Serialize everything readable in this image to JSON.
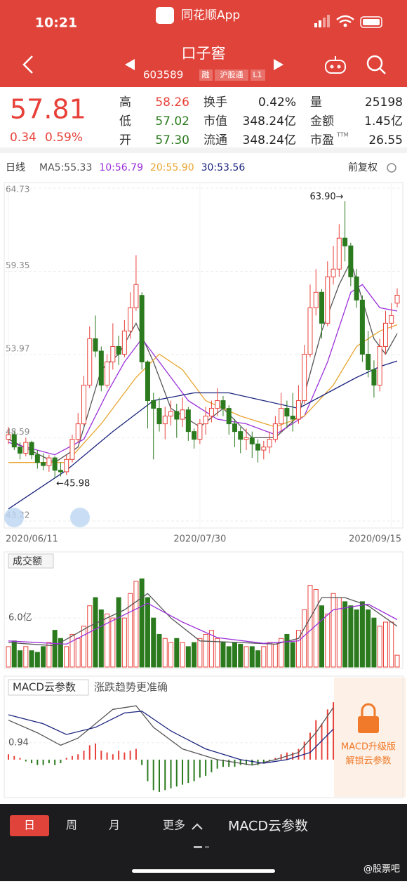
{
  "status": {
    "time": "10:21",
    "app": "同花顺App"
  },
  "header": {
    "title": "口子窖",
    "code": "603589",
    "tags": [
      "融",
      "沪股通",
      "L1"
    ]
  },
  "quote": {
    "price": "57.81",
    "change": "0.34",
    "change_pct": "0.59%",
    "fields": [
      {
        "label": "高",
        "value": "58.26"
      },
      {
        "label": "低",
        "value": "57.02"
      },
      {
        "label": "开",
        "value": "57.30"
      },
      {
        "label": "换手",
        "value": "0.42%"
      },
      {
        "label": "市值",
        "value": "348.24亿"
      },
      {
        "label": "流通",
        "value": "348.24亿"
      },
      {
        "label": "量",
        "value": "25198"
      },
      {
        "label": "金额",
        "value": "1.45亿"
      },
      {
        "label": "市盈",
        "sup": "TTM",
        "value": "26.55"
      }
    ]
  },
  "chart_data": [
    {
      "type": "candlestick",
      "period": "日线",
      "adjust": "前复权",
      "legend": [
        {
          "text": "MA5:55.33",
          "color": "#555555"
        },
        {
          "text": "10:56.79",
          "color": "#9b30d9"
        },
        {
          "text": "20:55.90",
          "color": "#e8a530"
        },
        {
          "text": "30:53.56",
          "color": "#1a237e"
        }
      ],
      "ylim": [
        43.22,
        64.73
      ],
      "yticks": [
        64.73,
        59.35,
        53.97,
        48.59,
        43.22
      ],
      "xticks": [
        {
          "value": 0,
          "label": "2020/06/11"
        },
        {
          "value": 33,
          "label": "2020/07/30"
        },
        {
          "value": 66,
          "label": "2020/09/15"
        }
      ],
      "annotations": [
        {
          "text": "63.90→",
          "x": 58,
          "y": 63.9,
          "anchor": "end"
        },
        {
          "text": "←45.98",
          "x": 8,
          "y": 45.98,
          "anchor": "start"
        }
      ],
      "up_color": "#e8413a",
      "down_color": "#2b7a1e",
      "candles": {
        "open": [
          48.5,
          48.8,
          48.0,
          47.6,
          48.3,
          47.5,
          47.0,
          46.8,
          47.3,
          46.5,
          46.4,
          47.2,
          48.5,
          49.5,
          52.0,
          55.0,
          54.2,
          52.0,
          53.5,
          54.5,
          54.0,
          55.5,
          57.0,
          57.8,
          53.5,
          51.0,
          50.5,
          49.5,
          50.0,
          50.3,
          49.8,
          50.4,
          49.0,
          48.5,
          49.5,
          50.0,
          50.5,
          51.0,
          50.5,
          49.5,
          49.0,
          48.5,
          48.6,
          48.2,
          47.8,
          48.0,
          48.5,
          49.5,
          50.5,
          50.0,
          49.8,
          51.0,
          54.0,
          57.0,
          58.0,
          56.0,
          59.0,
          59.5,
          61.5,
          61.0,
          59.0,
          57.5,
          54.0,
          53.0,
          52.0,
          54.5,
          56.0,
          57.3
        ],
        "close": [
          48.8,
          48.0,
          47.6,
          48.3,
          47.5,
          47.0,
          46.8,
          47.3,
          46.5,
          46.4,
          47.2,
          48.5,
          49.5,
          52.0,
          55.0,
          54.2,
          52.0,
          53.5,
          54.5,
          54.0,
          55.5,
          57.0,
          58.5,
          53.5,
          51.0,
          50.5,
          49.5,
          50.0,
          50.3,
          49.8,
          50.4,
          49.0,
          48.5,
          49.5,
          50.0,
          50.5,
          51.0,
          50.5,
          49.5,
          49.0,
          48.5,
          48.6,
          48.2,
          47.8,
          48.0,
          48.5,
          49.5,
          50.5,
          50.0,
          49.8,
          51.0,
          54.0,
          57.0,
          58.0,
          56.0,
          59.0,
          59.5,
          61.5,
          61.0,
          59.0,
          57.5,
          54.0,
          53.0,
          52.0,
          54.5,
          56.0,
          56.5,
          57.81
        ],
        "high": [
          49.3,
          49.0,
          48.3,
          48.6,
          48.4,
          47.8,
          47.6,
          47.5,
          47.4,
          47.0,
          47.5,
          48.8,
          50.2,
          52.6,
          55.8,
          56.5,
          54.5,
          54.0,
          56.0,
          55.2,
          56.2,
          58.0,
          60.4,
          58.0,
          53.6,
          51.5,
          51.2,
          50.6,
          51.0,
          50.8,
          51.2,
          50.6,
          49.2,
          49.8,
          50.6,
          51.0,
          51.8,
          51.3,
          50.7,
          49.8,
          49.3,
          49.2,
          49.0,
          48.5,
          48.4,
          49.0,
          50.0,
          51.5,
          51.0,
          51.5,
          52.0,
          54.6,
          58.5,
          59.5,
          58.2,
          60.0,
          61.0,
          62.4,
          63.9,
          61.2,
          59.5,
          57.8,
          55.5,
          53.6,
          55.0,
          56.8,
          57.3,
          58.26
        ],
        "low": [
          48.2,
          47.8,
          47.2,
          47.4,
          47.2,
          46.6,
          46.5,
          46.4,
          45.98,
          46.1,
          46.2,
          47.0,
          48.3,
          49.4,
          51.8,
          53.8,
          51.6,
          51.8,
          53.0,
          53.3,
          53.8,
          55.0,
          56.8,
          53.0,
          49.2,
          47.2,
          49.0,
          48.5,
          49.4,
          48.6,
          49.3,
          48.4,
          47.9,
          48.2,
          48.8,
          49.6,
          50.0,
          50.0,
          48.8,
          48.0,
          47.6,
          47.8,
          47.3,
          47.0,
          47.2,
          47.6,
          48.3,
          49.0,
          49.2,
          49.0,
          49.5,
          50.8,
          53.8,
          56.5,
          55.0,
          55.8,
          58.5,
          59.0,
          60.0,
          58.4,
          57.0,
          53.5,
          52.5,
          51.2,
          51.6,
          54.0,
          55.6,
          57.02
        ]
      },
      "series": [
        {
          "color": "#555555",
          "x": [
            0,
            8,
            12,
            16,
            19,
            22,
            25,
            28,
            33,
            37,
            42,
            46,
            50,
            54,
            57,
            59,
            63,
            65,
            67
          ],
          "values": [
            48.5,
            47.0,
            48.0,
            53.0,
            54.0,
            56.0,
            53.5,
            50.5,
            49.3,
            50.5,
            48.6,
            48.6,
            50.0,
            55.5,
            58.5,
            60.0,
            55.0,
            54.0,
            55.33
          ]
        },
        {
          "color": "#9b30d9",
          "x": [
            0,
            8,
            13,
            17,
            20,
            23,
            27,
            31,
            36,
            41,
            46,
            51,
            55,
            59,
            61,
            64,
            67
          ],
          "values": [
            48.3,
            47.5,
            48.5,
            51.5,
            53.5,
            55.0,
            53.0,
            51.0,
            49.8,
            49.5,
            48.8,
            50.0,
            53.5,
            58.0,
            58.5,
            57.0,
            56.79
          ]
        },
        {
          "color": "#e8a530",
          "x": [
            0,
            10,
            16,
            22,
            26,
            30,
            34,
            40,
            46,
            51,
            56,
            60,
            64,
            67
          ],
          "values": [
            47.0,
            47.0,
            49.5,
            52.5,
            54.0,
            53.0,
            51.0,
            50.0,
            49.3,
            50.0,
            52.0,
            54.5,
            55.5,
            55.9
          ]
        },
        {
          "color": "#1a237e",
          "x": [
            0,
            10,
            18,
            25,
            32,
            38,
            44,
            50,
            55,
            60,
            64,
            67
          ],
          "values": [
            44.0,
            46.5,
            49.0,
            51.0,
            51.5,
            51.5,
            51.0,
            50.5,
            51.5,
            52.5,
            53.2,
            53.56
          ]
        }
      ]
    },
    {
      "type": "volume",
      "title": "成交额",
      "ylim": [
        0,
        11
      ],
      "yticks": [
        {
          "value": 6,
          "label": "6.0亿"
        }
      ],
      "values": [
        2.5,
        3.2,
        2.0,
        2.5,
        2.0,
        1.8,
        2.5,
        3.0,
        4.5,
        3.5,
        2.5,
        4.0,
        3.5,
        5.0,
        7.5,
        8.5,
        7.0,
        6.5,
        6.0,
        8.5,
        6.0,
        9.0,
        10.5,
        10.8,
        8.5,
        6.0,
        4.0,
        3.5,
        3.0,
        3.5,
        3.0,
        2.5,
        3.0,
        3.5,
        4.0,
        4.5,
        3.5,
        3.0,
        2.5,
        3.0,
        2.8,
        2.5,
        2.5,
        2.0,
        2.5,
        3.0,
        2.8,
        3.5,
        4.0,
        3.0,
        4.5,
        7.0,
        10.0,
        9.5,
        7.5,
        6.5,
        9.0,
        8.5,
        8.0,
        7.5,
        7.0,
        8.0,
        7.0,
        6.0,
        5.0,
        5.5,
        5.5,
        1.45
      ],
      "series": [
        {
          "color": "#555555",
          "x": [
            0,
            8,
            14,
            20,
            24,
            28,
            33,
            40,
            46,
            50,
            54,
            58,
            62,
            67
          ],
          "values": [
            3.0,
            2.6,
            5.0,
            7.0,
            9.0,
            6.0,
            3.2,
            3.0,
            2.8,
            3.5,
            8.5,
            8.5,
            7.5,
            5.0
          ]
        },
        {
          "color": "#9b30d9",
          "x": [
            0,
            10,
            16,
            24,
            30,
            36,
            44,
            50,
            56,
            62,
            67
          ],
          "values": [
            3.2,
            2.8,
            5.0,
            7.8,
            5.5,
            3.6,
            2.9,
            3.2,
            7.0,
            7.7,
            5.8
          ]
        }
      ]
    },
    {
      "type": "macd",
      "title": "MACD云参数",
      "subtitle": "涨跌趋势更准确",
      "overlay": [
        "MACD升级版",
        "解锁云参数"
      ],
      "ylim": [
        -2.0,
        3.4
      ],
      "yticks": [
        0.94
      ],
      "values": [
        0.3,
        0.2,
        0.1,
        -0.1,
        -0.2,
        -0.3,
        -0.3,
        -0.2,
        -0.3,
        -0.2,
        0.1,
        0.2,
        0.3,
        0.5,
        0.8,
        0.9,
        0.5,
        0.4,
        0.3,
        0.5,
        0.4,
        0.5,
        0.6,
        -0.3,
        -1.2,
        -1.7,
        -1.8,
        -1.7,
        -1.6,
        -1.5,
        -1.4,
        -1.3,
        -1.2,
        -1.0,
        -0.9,
        -0.7,
        -0.5,
        -0.4,
        -0.4,
        -0.4,
        -0.3,
        -0.3,
        -0.3,
        -0.3,
        -0.2,
        -0.1,
        0.1,
        0.3,
        0.4,
        0.4,
        0.6,
        1.0,
        1.5,
        2.2,
        2.0,
        2.8,
        3.2
      ],
      "series": [
        {
          "color": "#555555",
          "x": [
            0,
            5,
            9,
            12,
            18,
            22,
            25,
            30,
            36,
            42,
            46,
            50,
            53,
            56
          ],
          "values": [
            2.2,
            1.5,
            0.8,
            1.2,
            2.8,
            3.0,
            1.8,
            0.6,
            0.0,
            -0.3,
            0.0,
            0.4,
            1.5,
            2.9
          ]
        },
        {
          "color": "#1a237e",
          "x": [
            0,
            6,
            10,
            15,
            20,
            23,
            28,
            34,
            40,
            44,
            48,
            52,
            56
          ],
          "values": [
            2.5,
            2.0,
            1.4,
            1.8,
            2.6,
            2.7,
            1.6,
            0.6,
            0.0,
            -0.2,
            0.0,
            0.4,
            1.7
          ]
        }
      ]
    }
  ],
  "tabs": [
    "日",
    "周",
    "月",
    "更多",
    "MACD云参数"
  ],
  "watermark": "@股票吧"
}
